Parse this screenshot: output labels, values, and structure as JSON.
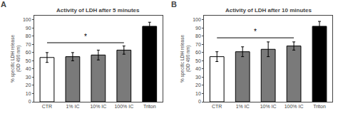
{
  "chart_data": [
    {
      "type": "bar",
      "title": "Activity of LDH after 5 minutes",
      "categories": [
        "CTR",
        "1% IC",
        "10% IC",
        "100% IC",
        "Triton"
      ],
      "values": [
        54,
        55,
        57,
        63,
        92
      ],
      "errors": [
        6,
        5,
        6,
        5,
        5
      ],
      "colors": [
        "#ffffff",
        "#7a7a7a",
        "#7a7a7a",
        "#7a7a7a",
        "#000000"
      ],
      "ylabel": "% specific LDH release\n(OD 490 nm)",
      "ylim": [
        0,
        105
      ],
      "yticks": [
        0,
        10,
        20,
        30,
        40,
        50,
        60,
        70,
        80,
        90,
        100
      ],
      "grid": false,
      "bracket": {
        "x": [
          0,
          3
        ],
        "y": 72
      },
      "annotations": [
        {
          "text": "A"
        },
        {
          "text": "*",
          "x": 1.5,
          "y": 73
        }
      ]
    },
    {
      "type": "bar",
      "title": "Activity of LDH after 10 minutes",
      "categories": [
        "CTR",
        "1% IC",
        "10% IC",
        "100% IC",
        "Triton"
      ],
      "values": [
        55,
        61,
        64,
        68,
        92
      ],
      "errors": [
        6,
        6,
        9,
        5,
        6
      ],
      "colors": [
        "#ffffff",
        "#7a7a7a",
        "#7a7a7a",
        "#7a7a7a",
        "#000000"
      ],
      "ylabel": "% specific LDH release\n(OD 490 nm)",
      "ylim": [
        0,
        105
      ],
      "yticks": [
        0,
        10,
        20,
        30,
        40,
        50,
        60,
        70,
        80,
        90,
        100
      ],
      "grid": false,
      "bracket": {
        "x": [
          0,
          3
        ],
        "y": 78
      },
      "annotations": [
        {
          "text": "B"
        },
        {
          "text": "*",
          "x": 1.5,
          "y": 79
        }
      ]
    }
  ]
}
